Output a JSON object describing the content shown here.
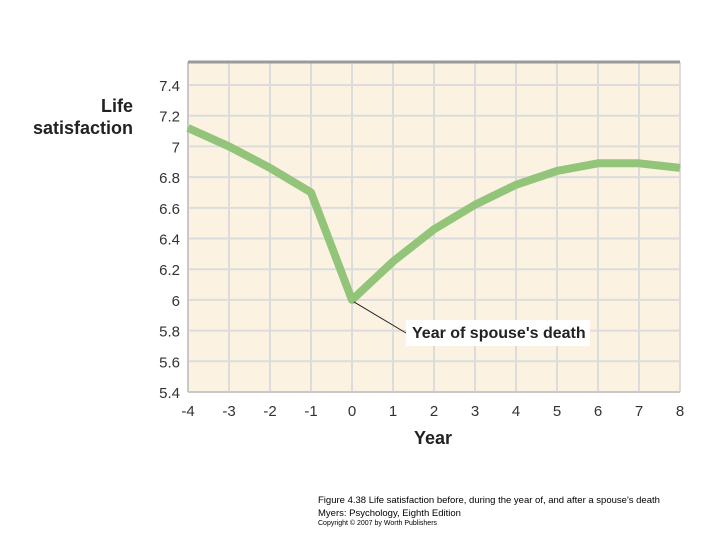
{
  "chart_data": {
    "type": "line",
    "xlabel": "Year",
    "ylabel_lines": [
      "Life",
      "satisfaction"
    ],
    "x_ticks": [
      -4,
      -3,
      -2,
      -1,
      0,
      1,
      2,
      3,
      4,
      5,
      6,
      7,
      8
    ],
    "y_ticks": [
      "5.4",
      "5.6",
      "5.8",
      "6",
      "6.2",
      "6.4",
      "6.6",
      "6.8",
      "7",
      "7.2",
      "7.4"
    ],
    "xlim": [
      -4,
      8
    ],
    "ylim": [
      5.4,
      7.55
    ],
    "grid": true,
    "colors": {
      "line": "#92c47a",
      "background": "#fbf2e1",
      "grid": "#dcdcdc"
    },
    "series": [
      {
        "x": [
          -4,
          -3,
          -2,
          -1,
          0,
          1,
          2,
          3,
          4,
          5,
          6,
          7,
          8
        ],
        "y": [
          7.12,
          7.0,
          6.86,
          6.7,
          6.0,
          6.25,
          6.46,
          6.62,
          6.75,
          6.84,
          6.89,
          6.89,
          6.86
        ]
      }
    ],
    "annotations": [
      {
        "text": "Year of spouse's death",
        "x": 0,
        "y": 6.0
      }
    ]
  },
  "caption": {
    "line1": "Figure 4.38 Life satisfaction before, during the year of, and after a spouse's death",
    "line2": "Myers: Psychology, Eighth Edition",
    "line3": "Copyright © 2007 by Worth Publishers"
  }
}
